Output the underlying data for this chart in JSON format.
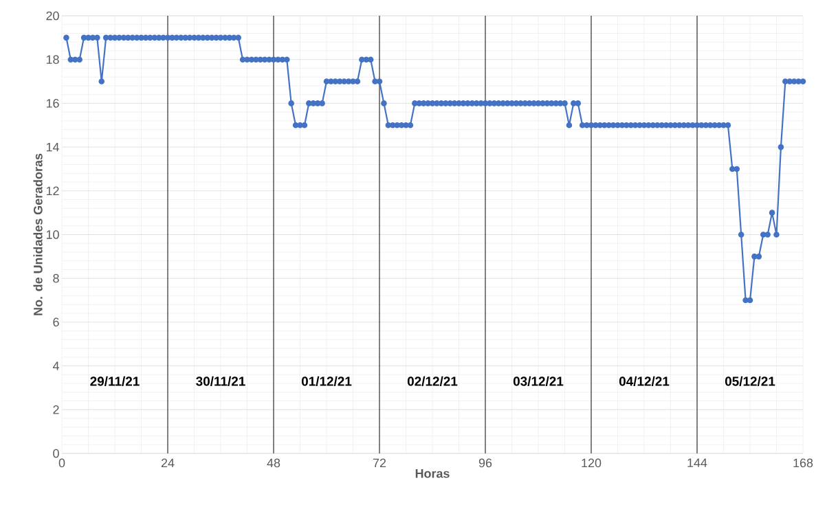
{
  "chart_data": {
    "type": "line",
    "xlabel": "Horas",
    "ylabel": "No. de Unidades Geradoras",
    "x": [
      1,
      2,
      3,
      4,
      5,
      6,
      7,
      8,
      9,
      10,
      11,
      12,
      13,
      14,
      15,
      16,
      17,
      18,
      19,
      20,
      21,
      22,
      23,
      24,
      25,
      26,
      27,
      28,
      29,
      30,
      31,
      32,
      33,
      34,
      35,
      36,
      37,
      38,
      39,
      40,
      41,
      42,
      43,
      44,
      45,
      46,
      47,
      48,
      49,
      50,
      51,
      52,
      53,
      54,
      55,
      56,
      57,
      58,
      59,
      60,
      61,
      62,
      63,
      64,
      65,
      66,
      67,
      68,
      69,
      70,
      71,
      72,
      73,
      74,
      75,
      76,
      77,
      78,
      79,
      80,
      81,
      82,
      83,
      84,
      85,
      86,
      87,
      88,
      89,
      90,
      91,
      92,
      93,
      94,
      95,
      96,
      97,
      98,
      99,
      100,
      101,
      102,
      103,
      104,
      105,
      106,
      107,
      108,
      109,
      110,
      111,
      112,
      113,
      114,
      115,
      116,
      117,
      118,
      119,
      120,
      121,
      122,
      123,
      124,
      125,
      126,
      127,
      128,
      129,
      130,
      131,
      132,
      133,
      134,
      135,
      136,
      137,
      138,
      139,
      140,
      141,
      142,
      143,
      144,
      145,
      146,
      147,
      148,
      149,
      150,
      151,
      152,
      153,
      154,
      155,
      156,
      157,
      158,
      159,
      160,
      161,
      162,
      163,
      164,
      165,
      166,
      167,
      168
    ],
    "series": [
      {
        "color": "#4472c4",
        "values": [
          19,
          18,
          18,
          18,
          19,
          19,
          19,
          19,
          17,
          19,
          19,
          19,
          19,
          19,
          19,
          19,
          19,
          19,
          19,
          19,
          19,
          19,
          19,
          19,
          19,
          19,
          19,
          19,
          19,
          19,
          19,
          19,
          19,
          19,
          19,
          19,
          19,
          19,
          19,
          19,
          18,
          18,
          18,
          18,
          18,
          18,
          18,
          18,
          18,
          18,
          18,
          16,
          15,
          15,
          15,
          16,
          16,
          16,
          16,
          17,
          17,
          17,
          17,
          17,
          17,
          17,
          17,
          18,
          18,
          18,
          17,
          17,
          16,
          15,
          15,
          15,
          15,
          15,
          15,
          16,
          16,
          16,
          16,
          16,
          16,
          16,
          16,
          16,
          16,
          16,
          16,
          16,
          16,
          16,
          16,
          16,
          16,
          16,
          16,
          16,
          16,
          16,
          16,
          16,
          16,
          16,
          16,
          16,
          16,
          16,
          16,
          16,
          16,
          16,
          15,
          16,
          16,
          15,
          15,
          15,
          15,
          15,
          15,
          15,
          15,
          15,
          15,
          15,
          15,
          15,
          15,
          15,
          15,
          15,
          15,
          15,
          15,
          15,
          15,
          15,
          15,
          15,
          15,
          15,
          15,
          15,
          15,
          15,
          15,
          15,
          15,
          13,
          13,
          10,
          7,
          7,
          9,
          9,
          10,
          10,
          11,
          10,
          14,
          17,
          17,
          17,
          17,
          17
        ]
      }
    ],
    "xlim": [
      0,
      168
    ],
    "ylim": [
      0,
      20
    ],
    "xticks": [
      0,
      24,
      48,
      72,
      96,
      120,
      144,
      168
    ],
    "yticks": [
      0,
      2,
      4,
      6,
      8,
      10,
      12,
      14,
      16,
      18,
      20
    ],
    "grid": true,
    "marker": "circle",
    "line_style": "solid",
    "ref_lines": [
      {
        "axis": "x",
        "value": 24,
        "color": "#000000"
      },
      {
        "axis": "x",
        "value": 48,
        "color": "#000000"
      },
      {
        "axis": "x",
        "value": 72,
        "color": "#000000"
      },
      {
        "axis": "x",
        "value": 96,
        "color": "#000000"
      },
      {
        "axis": "x",
        "value": 120,
        "color": "#000000"
      },
      {
        "axis": "x",
        "value": 144,
        "color": "#000000"
      }
    ],
    "annotations": [
      "29/11/21",
      "30/11/21",
      "01/12/21",
      "02/12/21",
      "03/12/21",
      "04/12/21",
      "05/12/21"
    ]
  }
}
